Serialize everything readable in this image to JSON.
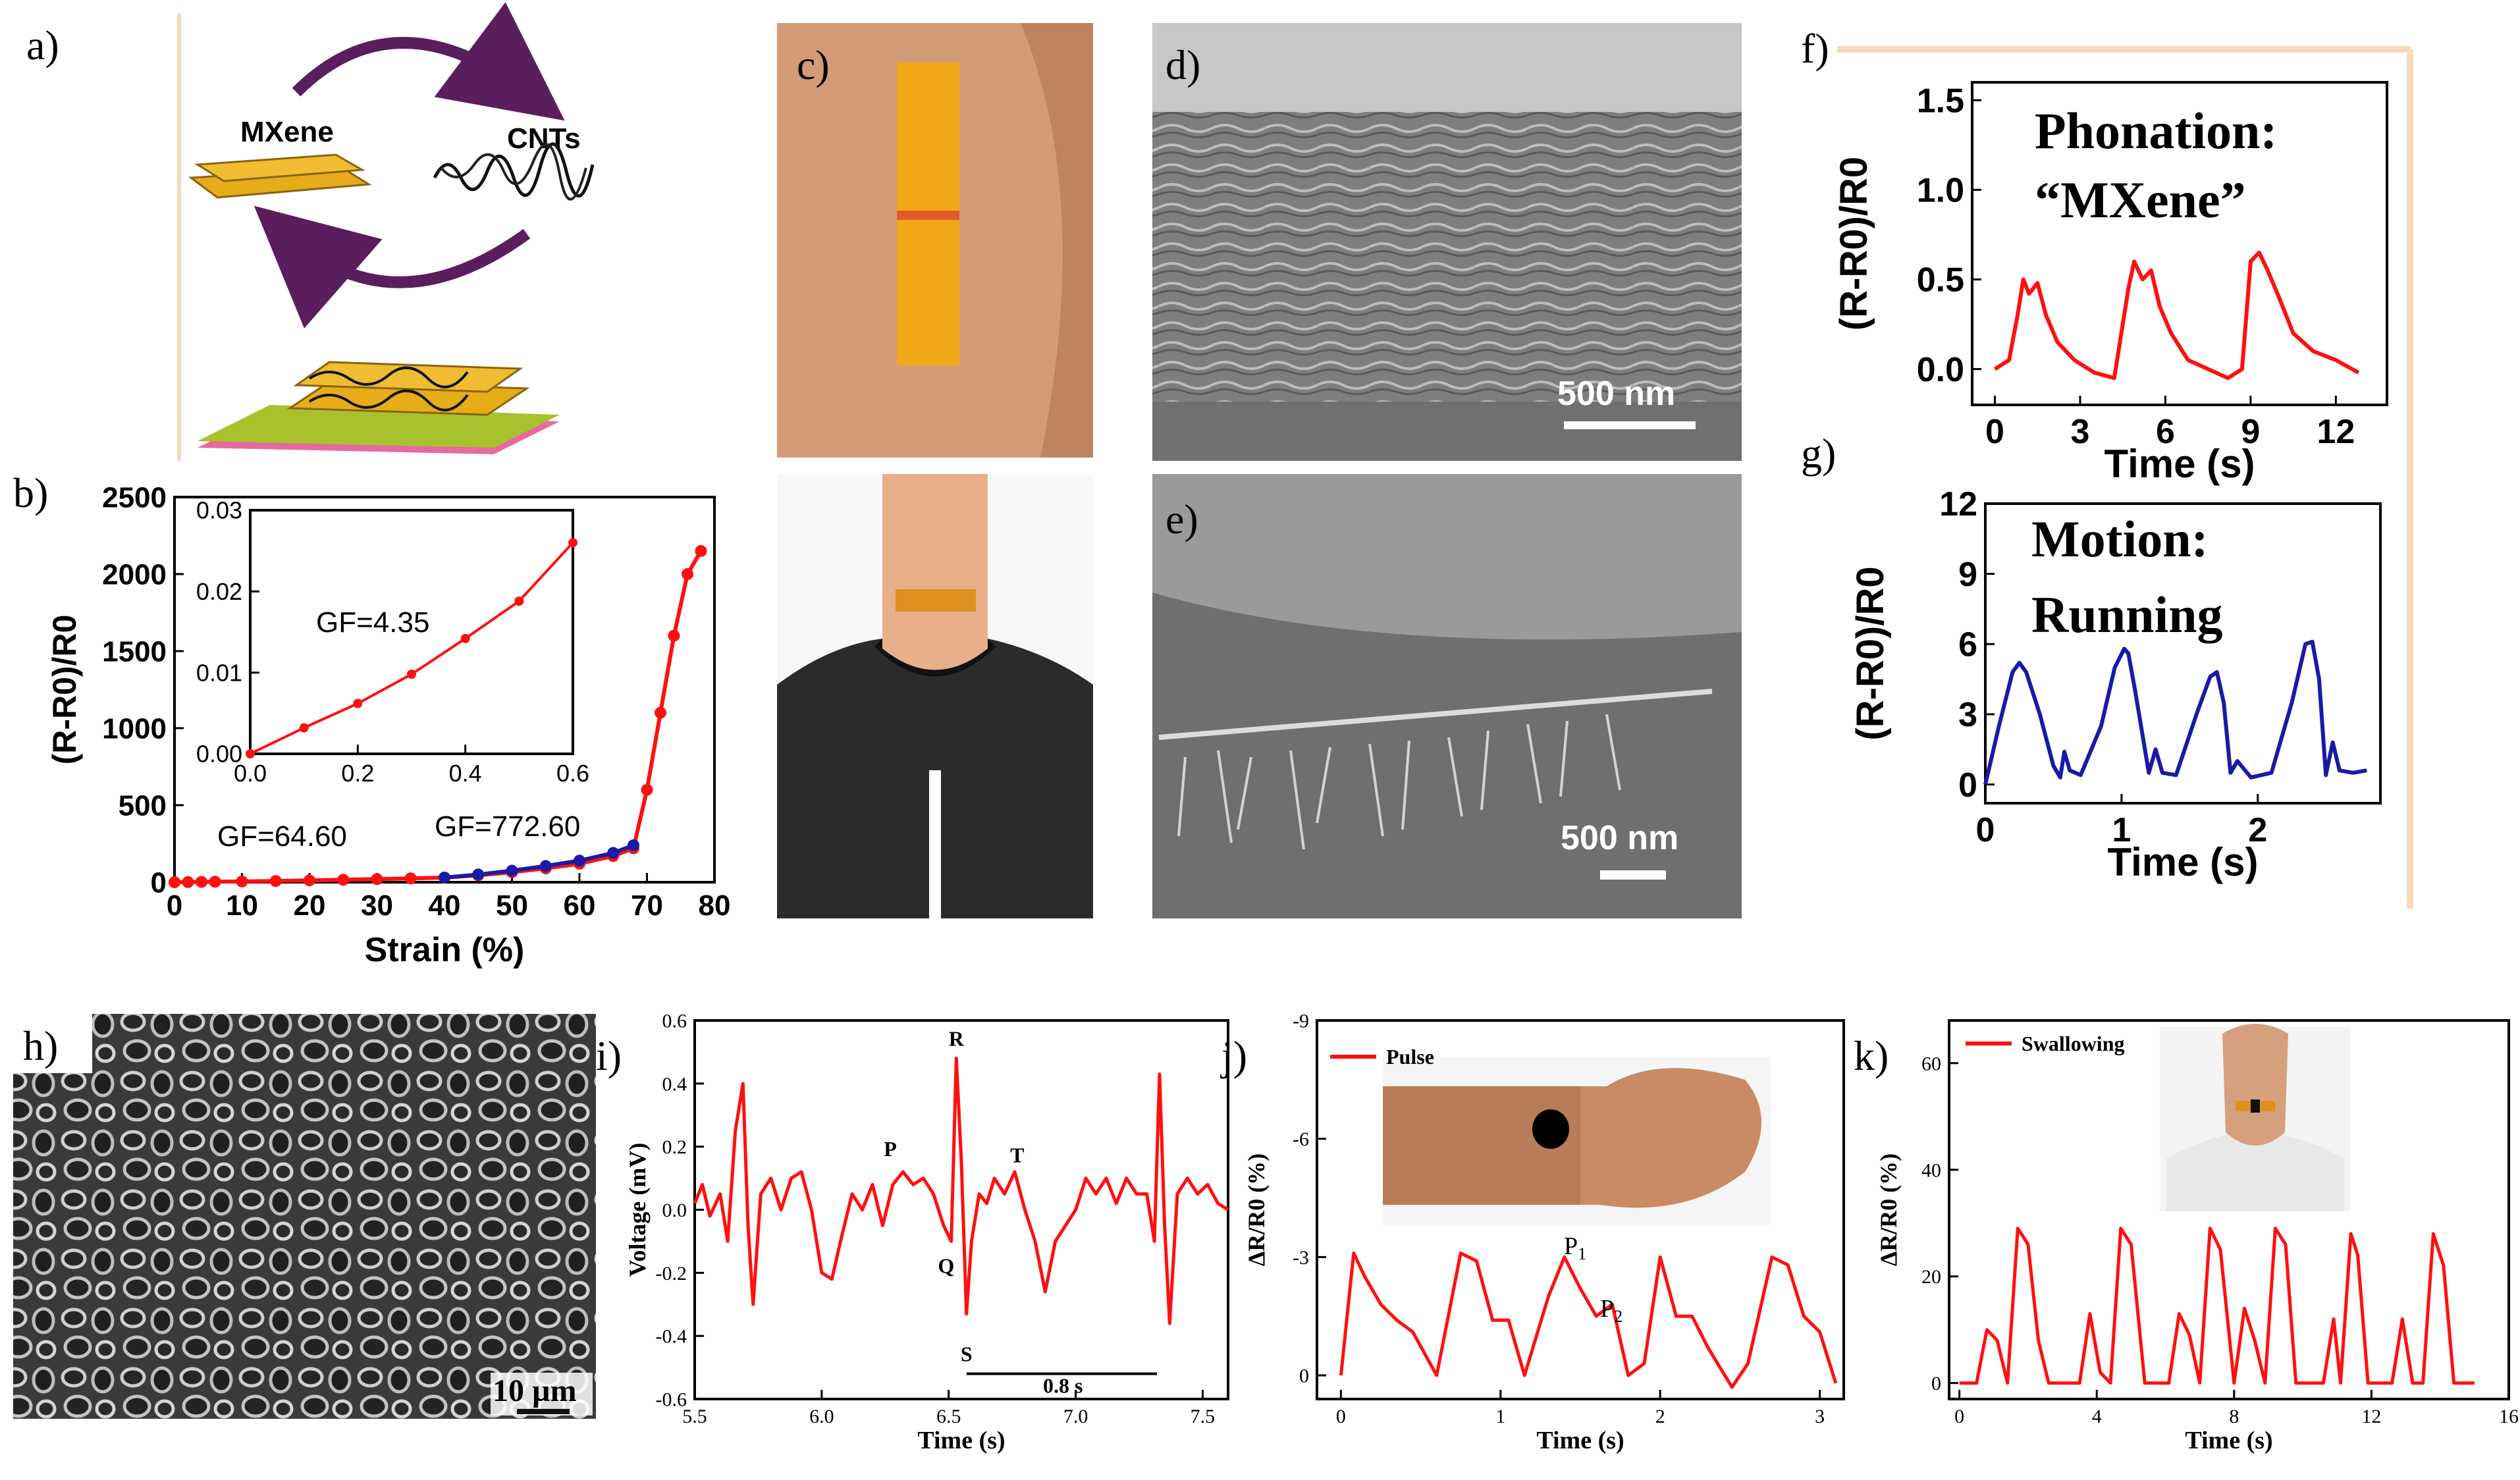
{
  "panels": {
    "a": {
      "letter": "a)",
      "mxene_label": "MXene",
      "cnts_label": "CNTs"
    },
    "b": {
      "letter": "b)",
      "gf_low": "GF=64.60",
      "gf_high": "GF=772.60",
      "inset_gf": "GF=4.35"
    },
    "c": {
      "letter": "c)"
    },
    "d": {
      "letter": "d)",
      "scale_bar": "500 nm"
    },
    "e": {
      "letter": "e)",
      "scale_bar": "500 nm"
    },
    "f": {
      "letter": "f)",
      "annotation_1": "Phonation:",
      "annotation_2": "“MXene”"
    },
    "g": {
      "letter": "g)",
      "annotation_1": "Motion:",
      "annotation_2": "Running"
    },
    "h": {
      "letter": "h)",
      "scale_bar": "10 µm"
    },
    "i": {
      "letter": "i)",
      "wave_labels": {
        "P": "P",
        "Q": "Q",
        "R": "R",
        "S": "S",
        "T": "T"
      },
      "interval_label": "0.8 s"
    },
    "j": {
      "letter": "j)",
      "peak_1": "P",
      "peak_1_sub": "1",
      "peak_2": "P",
      "peak_2_sub": "2"
    },
    "k": {
      "letter": "k)"
    }
  },
  "colors": {
    "red": "#ff1010",
    "blue": "#1a1aa8",
    "arrow": "#5a1e5e",
    "mxene_gold": "#e6ac1a",
    "skin": "#c98a66",
    "sem_gray": "#8f8f8f",
    "shirt": "#2b2b2b"
  },
  "chart_data": [
    {
      "id": "b",
      "type": "line",
      "xlabel": "Strain (%)",
      "ylabel": "(R-R0)/R0",
      "xlim": [
        0,
        80
      ],
      "ylim": [
        0,
        2500
      ],
      "xticks": [
        "0",
        "10",
        "20",
        "30",
        "40",
        "50",
        "60",
        "70",
        "80"
      ],
      "yticks": [
        "0",
        "500",
        "1000",
        "1500",
        "2000",
        "2500"
      ],
      "series": [
        {
          "color": "red",
          "x": [
            0,
            2,
            4,
            6,
            10,
            15,
            20,
            25,
            30,
            35,
            40,
            45,
            50,
            55,
            60,
            65,
            68,
            70,
            72,
            74,
            76,
            78
          ],
          "y": [
            0,
            1,
            2,
            3,
            5,
            8,
            12,
            16,
            20,
            25,
            30,
            45,
            65,
            90,
            120,
            170,
            220,
            600,
            1100,
            1600,
            2000,
            2150
          ]
        },
        {
          "color": "blue",
          "x": [
            40,
            45,
            50,
            55,
            60,
            65,
            68
          ],
          "y": [
            30,
            50,
            75,
            105,
            140,
            190,
            240
          ]
        }
      ]
    },
    {
      "id": "b_inset",
      "type": "line",
      "xlim": [
        0,
        0.6
      ],
      "ylim": [
        0,
        0.03
      ],
      "xticks": [
        "0.0",
        "0.2",
        "0.4",
        "0.6"
      ],
      "yticks": [
        "0.00",
        "0.01",
        "0.02",
        "0.03"
      ],
      "series": [
        {
          "color": "red",
          "x": [
            0.0,
            0.1,
            0.2,
            0.3,
            0.4,
            0.5,
            0.6
          ],
          "y": [
            0.0,
            0.0032,
            0.0062,
            0.0098,
            0.0142,
            0.0188,
            0.026
          ]
        }
      ]
    },
    {
      "id": "f",
      "type": "line",
      "xlabel": "Time (s)",
      "ylabel": "(R-R0)/R0",
      "xlim": [
        -0.8,
        13.8
      ],
      "ylim": [
        -0.2,
        1.6
      ],
      "xticks": [
        "0",
        "3",
        "6",
        "9",
        "12"
      ],
      "yticks": [
        "0.0",
        "0.5",
        "1.0",
        "1.5"
      ],
      "series": [
        {
          "color": "red",
          "x": [
            0,
            0.5,
            0.8,
            1.0,
            1.2,
            1.5,
            1.8,
            2.2,
            2.8,
            3.5,
            4.2,
            4.7,
            4.9,
            5.2,
            5.5,
            5.8,
            6.2,
            6.8,
            7.5,
            8.2,
            8.7,
            9.0,
            9.3,
            9.6,
            10.0,
            10.5,
            11.2,
            12.0,
            12.8
          ],
          "y": [
            0.0,
            0.05,
            0.3,
            0.5,
            0.42,
            0.48,
            0.3,
            0.15,
            0.05,
            -0.02,
            -0.05,
            0.45,
            0.6,
            0.5,
            0.55,
            0.35,
            0.2,
            0.05,
            0.0,
            -0.05,
            0.0,
            0.6,
            0.65,
            0.55,
            0.4,
            0.2,
            0.1,
            0.05,
            -0.02
          ]
        }
      ]
    },
    {
      "id": "g",
      "type": "line",
      "xlabel": "Time (s)",
      "ylabel": "(R-R0)/R0",
      "xlim": [
        0,
        2.9
      ],
      "ylim": [
        -0.8,
        12
      ],
      "xticks": [
        "0",
        "1",
        "2"
      ],
      "yticks": [
        "0",
        "3",
        "6",
        "9",
        "12"
      ],
      "series": [
        {
          "color": "blue",
          "x": [
            0,
            0.1,
            0.2,
            0.25,
            0.3,
            0.4,
            0.5,
            0.55,
            0.58,
            0.62,
            0.7,
            0.85,
            0.95,
            1.02,
            1.05,
            1.1,
            1.2,
            1.25,
            1.3,
            1.4,
            1.55,
            1.65,
            1.7,
            1.75,
            1.8,
            1.85,
            1.95,
            2.1,
            2.25,
            2.35,
            2.4,
            2.45,
            2.5,
            2.55,
            2.6,
            2.7,
            2.8
          ],
          "y": [
            0,
            2.5,
            4.8,
            5.2,
            4.8,
            3,
            0.8,
            0.3,
            1.4,
            0.6,
            0.4,
            2.5,
            5,
            5.8,
            5.6,
            4,
            0.5,
            1.5,
            0.5,
            0.4,
            3,
            4.6,
            4.8,
            3.5,
            0.5,
            1,
            0.3,
            0.5,
            3.5,
            6,
            6.1,
            4.5,
            0.4,
            1.8,
            0.6,
            0.5,
            0.6
          ]
        }
      ]
    },
    {
      "id": "i",
      "type": "line",
      "xlabel": "Time (s)",
      "ylabel": "Voltage (mV)",
      "xlim": [
        5.5,
        7.6
      ],
      "ylim": [
        -0.6,
        0.6
      ],
      "xticks": [
        "5.5",
        "6.0",
        "6.5",
        "7.0",
        "7.5"
      ],
      "yticks": [
        "-0.6",
        "-0.4",
        "-0.2",
        "0.0",
        "0.2",
        "0.4",
        "0.6"
      ],
      "series": [
        {
          "color": "red",
          "x": [
            5.5,
            5.53,
            5.56,
            5.6,
            5.63,
            5.66,
            5.69,
            5.71,
            5.73,
            5.76,
            5.8,
            5.84,
            5.88,
            5.92,
            5.96,
            6.0,
            6.04,
            6.08,
            6.12,
            6.16,
            6.2,
            6.24,
            6.28,
            6.32,
            6.36,
            6.4,
            6.44,
            6.48,
            6.51,
            6.53,
            6.55,
            6.57,
            6.59,
            6.62,
            6.65,
            6.68,
            6.72,
            6.76,
            6.8,
            6.84,
            6.88,
            6.92,
            6.96,
            7.0,
            7.04,
            7.08,
            7.12,
            7.16,
            7.2,
            7.24,
            7.28,
            7.31,
            7.33,
            7.35,
            7.37,
            7.4,
            7.44,
            7.48,
            7.52,
            7.56,
            7.6
          ],
          "y": [
            0.02,
            0.08,
            -0.02,
            0.05,
            -0.1,
            0.25,
            0.4,
            -0.05,
            -0.3,
            0.05,
            0.1,
            0.0,
            0.1,
            0.12,
            0.0,
            -0.2,
            -0.22,
            -0.08,
            0.05,
            0.0,
            0.08,
            -0.05,
            0.08,
            0.12,
            0.08,
            0.1,
            0.05,
            -0.05,
            -0.1,
            0.48,
            0.15,
            -0.33,
            -0.1,
            0.05,
            0.02,
            0.1,
            0.05,
            0.12,
            0.0,
            -0.1,
            -0.26,
            -0.1,
            -0.05,
            0.0,
            0.1,
            0.05,
            0.1,
            0.02,
            0.1,
            0.05,
            0.05,
            -0.1,
            0.43,
            -0.05,
            -0.36,
            0.05,
            0.1,
            0.05,
            0.08,
            0.02,
            0.0
          ]
        }
      ]
    },
    {
      "id": "j",
      "type": "line",
      "xlabel": "Time (s)",
      "ylabel": "ΔR/R0 (%)",
      "xlim": [
        -0.15,
        3.15
      ],
      "ylim": [
        0.6,
        -9
      ],
      "xticks": [
        "0",
        "1",
        "2",
        "3"
      ],
      "yticks": [
        "-9",
        "-6",
        "-3",
        "0"
      ],
      "series": [
        {
          "color": "red",
          "x": [
            0,
            0.08,
            0.15,
            0.25,
            0.35,
            0.45,
            0.6,
            0.75,
            0.85,
            0.95,
            1.05,
            1.15,
            1.3,
            1.4,
            1.5,
            1.6,
            1.7,
            1.8,
            1.9,
            2.0,
            2.1,
            2.2,
            2.3,
            2.45,
            2.55,
            2.7,
            2.8,
            2.9,
            3.0,
            3.1
          ],
          "y": [
            0,
            -3.1,
            -2.5,
            -1.8,
            -1.4,
            -1.1,
            0,
            -3.1,
            -2.9,
            -1.4,
            -1.4,
            0,
            -2.0,
            -3.0,
            -2.2,
            -1.5,
            -1.8,
            0,
            -0.3,
            -3.0,
            -1.5,
            -1.5,
            -0.7,
            0.3,
            -0.3,
            -3.0,
            -2.8,
            -1.5,
            -1.1,
            0.2
          ]
        }
      ]
    },
    {
      "id": "k",
      "type": "line",
      "xlabel": "Time (s)",
      "ylabel": "ΔR/R0 (%)",
      "xlim": [
        -0.3,
        16
      ],
      "ylim": [
        -3,
        68
      ],
      "xticks": [
        "0",
        "4",
        "8",
        "12",
        "16"
      ],
      "yticks": [
        "0",
        "20",
        "40",
        "60"
      ],
      "series": [
        {
          "name": "Swallowing",
          "color": "red",
          "x": [
            0,
            0.3,
            0.5,
            0.8,
            1.1,
            1.4,
            1.7,
            2.0,
            2.3,
            2.6,
            2.9,
            3.2,
            3.5,
            3.8,
            4.1,
            4.4,
            4.7,
            5.0,
            5.4,
            5.8,
            6.1,
            6.4,
            6.7,
            7.0,
            7.3,
            7.6,
            8.0,
            8.3,
            8.6,
            8.9,
            9.2,
            9.5,
            9.8,
            10.2,
            10.6,
            10.9,
            11.1,
            11.4,
            11.6,
            11.9,
            12.2,
            12.6,
            12.9,
            13.2,
            13.5,
            13.8,
            14.1,
            14.4,
            14.7,
            15.0
          ],
          "y": [
            0,
            0,
            0,
            10,
            8,
            0,
            29,
            26,
            8,
            0,
            0,
            0,
            0,
            13,
            2,
            0,
            29,
            26,
            0,
            0,
            0,
            13,
            9,
            0,
            29,
            25,
            0,
            14,
            8,
            0,
            29,
            26,
            0,
            0,
            0,
            12,
            0,
            28,
            24,
            0,
            0,
            0,
            12,
            0,
            0,
            28,
            22,
            0,
            0,
            0
          ]
        }
      ]
    }
  ],
  "legends": {
    "j": "Pulse",
    "k": "Swallowing"
  }
}
